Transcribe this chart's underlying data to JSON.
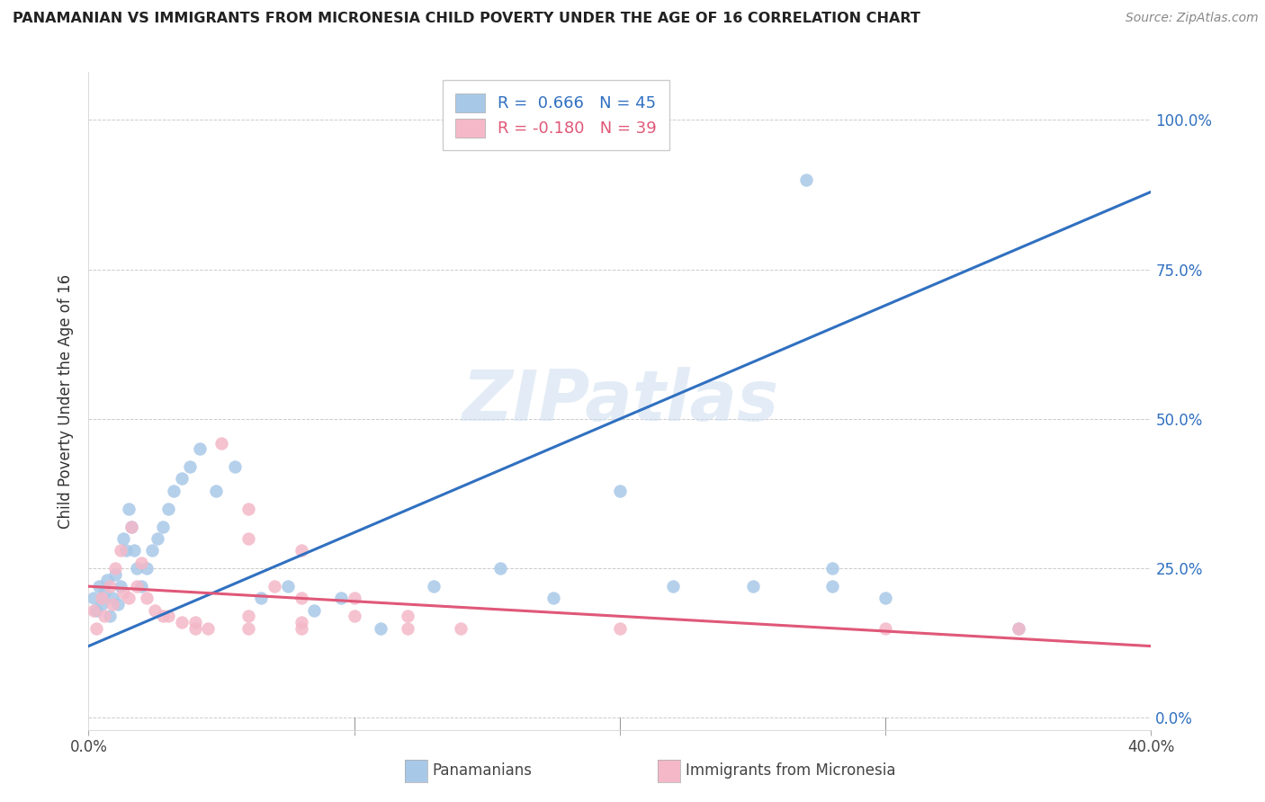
{
  "title": "PANAMANIAN VS IMMIGRANTS FROM MICRONESIA CHILD POVERTY UNDER THE AGE OF 16 CORRELATION CHART",
  "source": "Source: ZipAtlas.com",
  "ylabel": "Child Poverty Under the Age of 16",
  "xlim": [
    0.0,
    0.4
  ],
  "ylim": [
    -0.02,
    1.08
  ],
  "yticks": [
    0.0,
    0.25,
    0.5,
    0.75,
    1.0
  ],
  "ytick_labels": [
    "0.0%",
    "25.0%",
    "50.0%",
    "75.0%",
    "100.0%"
  ],
  "xticks": [
    0.0,
    0.1,
    0.2,
    0.3,
    0.4
  ],
  "xtick_labels": [
    "0.0%",
    "",
    "",
    "",
    "40.0%"
  ],
  "blue_R": 0.666,
  "blue_N": 45,
  "pink_R": -0.18,
  "pink_N": 39,
  "blue_color": "#a8c8e8",
  "pink_color": "#f4b8c8",
  "blue_line_color": "#3070c0",
  "pink_line_color": "#e05878",
  "watermark": "ZIPatlas",
  "blue_scatter_x": [
    0.002,
    0.003,
    0.004,
    0.005,
    0.006,
    0.007,
    0.008,
    0.009,
    0.01,
    0.011,
    0.012,
    0.013,
    0.014,
    0.015,
    0.016,
    0.017,
    0.018,
    0.02,
    0.022,
    0.024,
    0.026,
    0.028,
    0.03,
    0.032,
    0.035,
    0.038,
    0.042,
    0.048,
    0.055,
    0.065,
    0.075,
    0.085,
    0.095,
    0.11,
    0.13,
    0.155,
    0.175,
    0.2,
    0.22,
    0.25,
    0.28,
    0.3,
    0.35,
    0.28,
    0.27
  ],
  "blue_scatter_y": [
    0.2,
    0.18,
    0.22,
    0.19,
    0.21,
    0.23,
    0.17,
    0.2,
    0.24,
    0.19,
    0.22,
    0.3,
    0.28,
    0.35,
    0.32,
    0.28,
    0.25,
    0.22,
    0.25,
    0.28,
    0.3,
    0.32,
    0.35,
    0.38,
    0.4,
    0.42,
    0.45,
    0.38,
    0.42,
    0.2,
    0.22,
    0.18,
    0.2,
    0.15,
    0.22,
    0.25,
    0.2,
    0.38,
    0.22,
    0.22,
    0.25,
    0.2,
    0.15,
    0.22,
    0.9
  ],
  "pink_scatter_x": [
    0.002,
    0.003,
    0.005,
    0.006,
    0.008,
    0.009,
    0.01,
    0.012,
    0.013,
    0.015,
    0.016,
    0.018,
    0.02,
    0.022,
    0.025,
    0.028,
    0.03,
    0.035,
    0.04,
    0.045,
    0.05,
    0.06,
    0.07,
    0.08,
    0.06,
    0.08,
    0.1,
    0.12,
    0.14,
    0.06,
    0.1,
    0.08,
    0.12,
    0.04,
    0.06,
    0.08,
    0.2,
    0.3,
    0.35
  ],
  "pink_scatter_y": [
    0.18,
    0.15,
    0.2,
    0.17,
    0.22,
    0.19,
    0.25,
    0.28,
    0.21,
    0.2,
    0.32,
    0.22,
    0.26,
    0.2,
    0.18,
    0.17,
    0.17,
    0.16,
    0.16,
    0.15,
    0.46,
    0.3,
    0.22,
    0.2,
    0.35,
    0.28,
    0.2,
    0.17,
    0.15,
    0.17,
    0.17,
    0.16,
    0.15,
    0.15,
    0.15,
    0.15,
    0.15,
    0.15,
    0.15
  ],
  "blue_line_x": [
    0.0,
    0.4
  ],
  "blue_line_y": [
    0.12,
    0.88
  ],
  "pink_line_x": [
    0.0,
    0.4
  ],
  "pink_line_y": [
    0.22,
    0.12
  ]
}
